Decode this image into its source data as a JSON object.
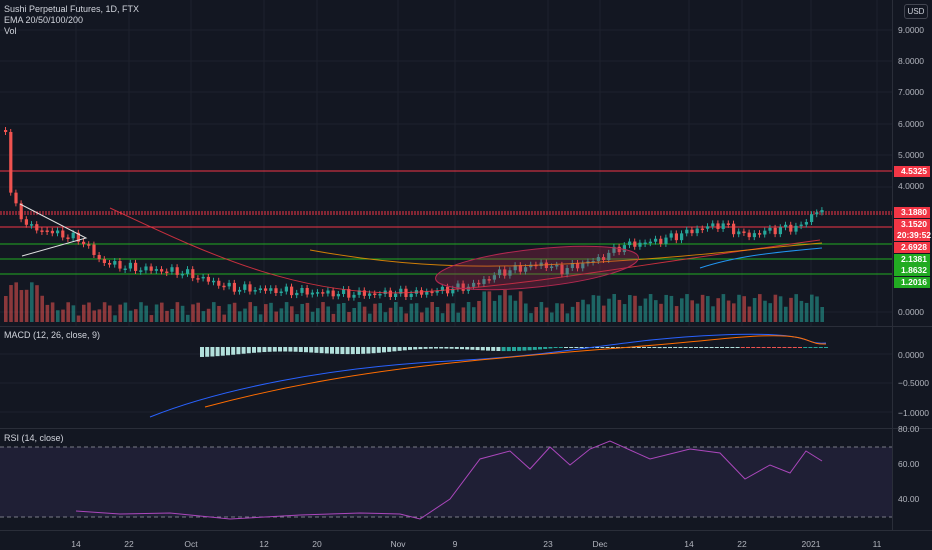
{
  "legend": {
    "symbol": "Sushi Perpetual Futures, 1D, FTX",
    "ema": "EMA 20/50/100/200",
    "vol": "Vol",
    "macd": "MACD (12, 26, close, 9)",
    "rsi": "RSI (14, close)"
  },
  "currency_button": "USD",
  "price_axis": [
    "9.0000",
    "8.0000",
    "7.0000",
    "6.0000",
    "5.0000",
    "4.0000",
    "0.0000"
  ],
  "price_tags": [
    {
      "value": "4.5325",
      "color": "#f23645"
    },
    {
      "value": "3.1880",
      "color": "#f23645"
    },
    {
      "value": "3.1520",
      "color": "#f23645"
    },
    {
      "value": "20:39:52",
      "color": "#f23645"
    },
    {
      "value": "2.6928",
      "color": "#f23645"
    },
    {
      "value": "2.1381",
      "color": "#22ab22"
    },
    {
      "value": "1.8632",
      "color": "#22ab22"
    },
    {
      "value": "1.2016",
      "color": "#22ab22"
    }
  ],
  "macd_axis": [
    "0.0000",
    "−0.5000",
    "−1.0000"
  ],
  "rsi_axis": [
    "80.00",
    "60.00",
    "40.00"
  ],
  "time_axis": [
    "14",
    "22",
    "Oct",
    "12",
    "20",
    "Nov",
    "9",
    "23",
    "Dec",
    "14",
    "22",
    "2021",
    "11"
  ],
  "colors": {
    "background": "#131722",
    "up": "#26a69a",
    "down": "#ef5350",
    "resistance": "#f23645",
    "support": "#22ab22",
    "rsi_line": "#ab47bc",
    "macd_line": "#2962ff",
    "signal_line": "#ff6d00"
  }
}
